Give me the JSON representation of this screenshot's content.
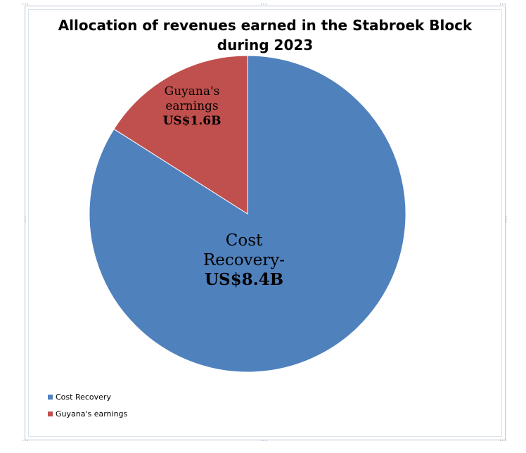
{
  "chart_data": {
    "type": "pie",
    "title": "Allocation of revenues earned in the Stabroek Block during 2023",
    "title_lines": [
      "Allocation of revenues earned in the Stabroek Block",
      "during 2023"
    ],
    "series": [
      {
        "name": "",
        "categories": [
          "Cost Recovery",
          "Guyana's earnings"
        ],
        "values": [
          8.4,
          1.6
        ],
        "units": "US$ billions"
      }
    ],
    "slices": [
      {
        "category": "Cost Recovery",
        "value": 8.4,
        "color": "#4f81bd",
        "label_lines": [
          "Cost",
          "Recovery-"
        ],
        "value_label": "US$8.4B"
      },
      {
        "category": "Guyana's earnings",
        "value": 1.6,
        "color": "#c0504d",
        "label_lines": [
          "Guyana's",
          "earnings"
        ],
        "value_label": "US$1.6B"
      }
    ],
    "legend": {
      "placement": "bottom-left",
      "entries": [
        "Cost Recovery",
        "Guyana's earnings"
      ]
    },
    "start_angle": "12 o'clock",
    "direction": "clockwise"
  },
  "colors": {
    "cost_recovery": "#4f81bd",
    "guyana_earnings": "#c0504d",
    "frame": "#b9c4d2"
  }
}
